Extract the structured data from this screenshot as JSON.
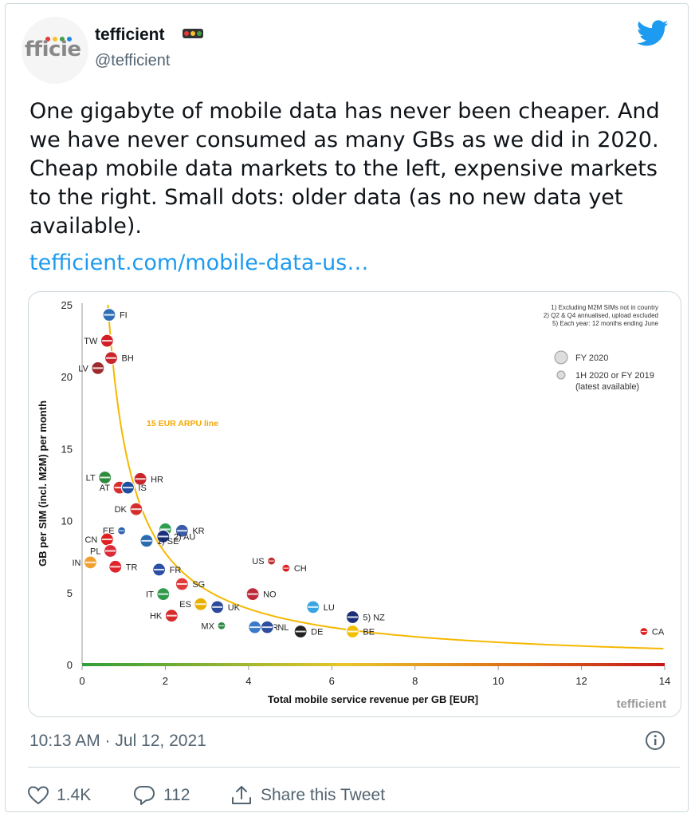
{
  "header": {
    "avatar_text": "fficie",
    "display_name": "tefficient",
    "handle": "@tefficient",
    "avatar_dots": [
      "#e53935",
      "#fbc02d",
      "#43a047",
      "#1e88e5"
    ]
  },
  "tweet": {
    "text": "One gigabyte of mobile data has never been cheaper. And\nwe have never consumed as many GBs as we did in 2020.\nCheap mobile data markets to the left, expensive markets\nto the right. Small dots: older data (as no new data yet\navailable).",
    "link": "tefficient.com/mobile-data-us…",
    "timestamp": "10:13 AM · Jul 12, 2021"
  },
  "actions": {
    "likes": "1.4K",
    "replies": "112",
    "share_label": "Share this Tweet"
  },
  "colors": {
    "accent": "#1d9bf0",
    "curve": "#f5b800",
    "muted": "#536471"
  },
  "chart_data": {
    "type": "scatter",
    "xlabel": "Total mobile service revenue per GB [EUR]",
    "ylabel": "GB per SIM (incl. M2M) per month",
    "xlim": [
      0,
      14
    ],
    "ylim": [
      0,
      25
    ],
    "x_ticks": [
      "0",
      "2",
      "4",
      "6",
      "8",
      "10",
      "12",
      "14"
    ],
    "y_ticks": [
      "0",
      "5",
      "10",
      "15",
      "20",
      "25"
    ],
    "notes": [
      "1) Excluding M2M SIMs not in country",
      "2) Q2 & Q4 annualised, upload excluded",
      "5) Each year: 12 months ending June"
    ],
    "legend": {
      "large": "FY 2020",
      "small_1": "1H 2020 or FY 2019",
      "small_2": "(latest available)"
    },
    "curve_label": "15 EUR ARPU line",
    "brand": "tefficient",
    "points": [
      {
        "label": "FI",
        "x": 0.65,
        "y": 24.3,
        "size": "large",
        "color": "#2f6fb5"
      },
      {
        "label": "TW",
        "x": 0.6,
        "y": 22.5,
        "size": "large",
        "color": "#d11f26"
      },
      {
        "label": "BH",
        "x": 0.7,
        "y": 21.3,
        "size": "large",
        "color": "#c9252c"
      },
      {
        "label": "LV",
        "x": 0.38,
        "y": 20.6,
        "size": "large",
        "color": "#9e2a2b"
      },
      {
        "label": "LT",
        "x": 0.55,
        "y": 13.0,
        "size": "large",
        "color": "#2e8b3d"
      },
      {
        "label": "HR",
        "x": 1.4,
        "y": 12.9,
        "size": "large",
        "color": "#c8242b"
      },
      {
        "label": "AT",
        "x": 0.9,
        "y": 12.3,
        "size": "large",
        "color": "#d62e2e"
      },
      {
        "label": "IS",
        "x": 1.1,
        "y": 12.3,
        "size": "large",
        "color": "#1f4fa0"
      },
      {
        "label": "DK",
        "x": 1.3,
        "y": 10.8,
        "size": "large",
        "color": "#d62e2e"
      },
      {
        "label": "IE",
        "x": 2.0,
        "y": 9.4,
        "size": "large",
        "color": "#2e9e4f"
      },
      {
        "label": "KR",
        "x": 2.4,
        "y": 9.3,
        "size": "large",
        "color": "#3a5ba8"
      },
      {
        "label": "EE",
        "x": 0.95,
        "y": 9.3,
        "size": "small",
        "color": "#2a5fb0"
      },
      {
        "label": "AU",
        "x": 1.95,
        "y": 8.9,
        "size": "large",
        "color": "#1c2f7a"
      },
      {
        "label": "CN",
        "x": 0.6,
        "y": 8.7,
        "size": "large",
        "color": "#e02020"
      },
      {
        "label": "SE",
        "x": 1.55,
        "y": 8.6,
        "size": "large",
        "color": "#2a6ab0"
      },
      {
        "label": "PL",
        "x": 0.68,
        "y": 7.9,
        "size": "large",
        "color": "#dd2a3a"
      },
      {
        "label": "IN",
        "x": 0.2,
        "y": 7.1,
        "size": "large",
        "color": "#f0a030"
      },
      {
        "label": "TR",
        "x": 0.8,
        "y": 6.8,
        "size": "large",
        "color": "#e0242b"
      },
      {
        "label": "FR",
        "x": 1.85,
        "y": 6.6,
        "size": "large",
        "color": "#2a4fa5"
      },
      {
        "label": "US",
        "x": 4.55,
        "y": 7.2,
        "size": "small",
        "color": "#c0302f"
      },
      {
        "label": "CH",
        "x": 4.9,
        "y": 6.7,
        "size": "small",
        "color": "#e02020"
      },
      {
        "label": "SG",
        "x": 2.4,
        "y": 5.6,
        "size": "large",
        "color": "#e03a3a"
      },
      {
        "label": "IT",
        "x": 1.95,
        "y": 4.9,
        "size": "large",
        "color": "#2f9a4a"
      },
      {
        "label": "NO",
        "x": 4.1,
        "y": 4.9,
        "size": "large",
        "color": "#bd2a3a"
      },
      {
        "label": "ES",
        "x": 2.85,
        "y": 4.2,
        "size": "large",
        "color": "#e8b000"
      },
      {
        "label": "UK",
        "x": 3.25,
        "y": 4.0,
        "size": "large",
        "color": "#2c4a9a"
      },
      {
        "label": "LU",
        "x": 5.55,
        "y": 4.0,
        "size": "large",
        "color": "#3aa5e0"
      },
      {
        "label": "HK",
        "x": 2.15,
        "y": 3.4,
        "size": "large",
        "color": "#d72a2a"
      },
      {
        "label": "NZ",
        "x": 6.5,
        "y": 3.3,
        "size": "large",
        "color": "#1d2f78"
      },
      {
        "label": "MX",
        "x": 3.35,
        "y": 2.7,
        "size": "small",
        "color": "#2f8a47"
      },
      {
        "label": "GR",
        "x": 4.15,
        "y": 2.6,
        "size": "large",
        "color": "#3b7ac8"
      },
      {
        "label": "NL",
        "x": 4.45,
        "y": 2.6,
        "size": "large",
        "color": "#2d4f9e"
      },
      {
        "label": "DE",
        "x": 5.25,
        "y": 2.3,
        "size": "large",
        "color": "#222222"
      },
      {
        "label": "BE",
        "x": 6.5,
        "y": 2.3,
        "size": "large",
        "color": "#f2c000"
      },
      {
        "label": "CA",
        "x": 13.5,
        "y": 2.3,
        "size": "small",
        "color": "#e02020"
      }
    ],
    "point_labels": {
      "FI": "FI",
      "TW": "TW",
      "BH": "BH",
      "LV": "LV",
      "LT": "LT",
      "HR": "HR",
      "AT": "AT",
      "IS": "IS",
      "DK": "DK",
      "IE": "IE",
      "KR": "KR",
      "EE": "EE",
      "AU": "2) AU",
      "CN": "CN",
      "SE": "1) SE",
      "PL": "PL",
      "IN": "IN",
      "TR": "TR",
      "FR": "FR",
      "US": "US",
      "CH": "CH",
      "SG": "SG",
      "IT": "IT",
      "NO": "NO",
      "ES": "ES",
      "UK": "UK",
      "LU": "LU",
      "HK": "HK",
      "NZ": "5) NZ",
      "MX": "MX",
      "GR": "GR",
      "NL": "NL",
      "DE": "DE",
      "BE": "BE",
      "CA": "CA"
    }
  }
}
